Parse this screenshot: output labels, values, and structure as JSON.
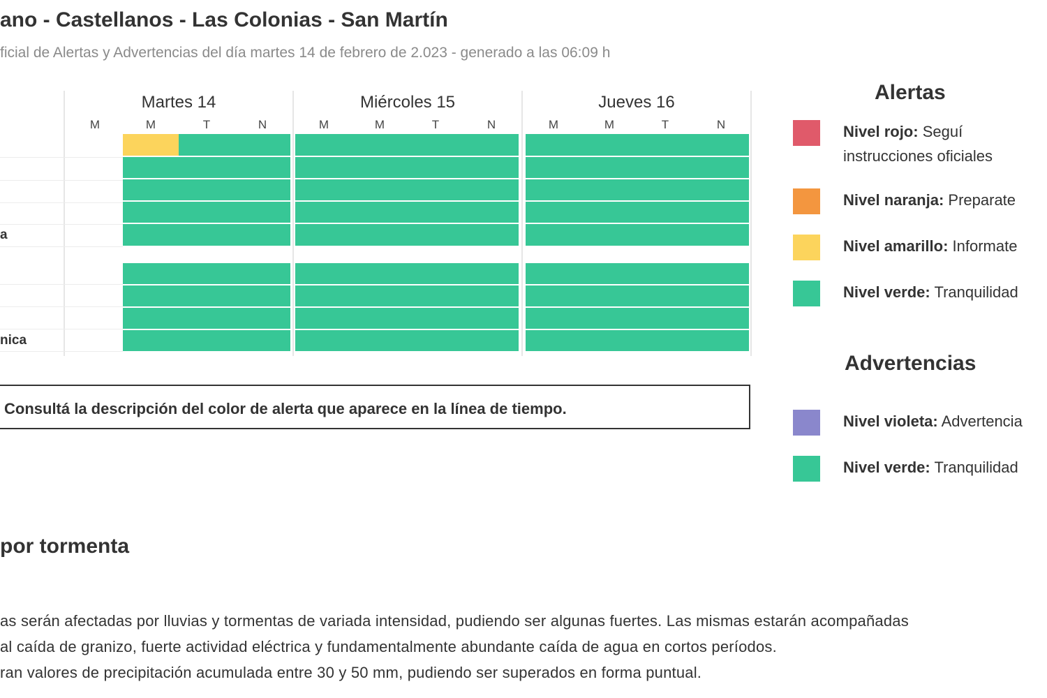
{
  "header": {
    "title": "ano - Castellanos - Las Colonias - San Martín",
    "subtitle": "ficial de Alertas y Advertencias del día martes 14 de febrero de 2.023 - generado a las 06:09 h"
  },
  "timeline": {
    "days": [
      {
        "label": "Martes 14",
        "periods": [
          "M",
          "M",
          "T",
          "N"
        ]
      },
      {
        "label": "Miércoles 15",
        "periods": [
          "M",
          "M",
          "T",
          "N"
        ]
      },
      {
        "label": "Jueves 16",
        "periods": [
          "M",
          "M",
          "T",
          "N"
        ]
      }
    ],
    "row_labels": [
      "a",
      "nica"
    ],
    "cell_colors": {
      "green": "#37c796",
      "yellow": "#fcd45c"
    }
  },
  "notice": {
    "text": "Consultá la descripción del color de alerta que aparece en la línea de tiempo."
  },
  "legend": {
    "alertas_title": "Alertas",
    "alertas": [
      {
        "name": "Nivel rojo:",
        "desc": "Seguí",
        "desc2": "instrucciones oficiales",
        "color": "#e05a6a"
      },
      {
        "name": "Nivel naranja:",
        "desc": "Preparate",
        "color": "#f3963f"
      },
      {
        "name": "Nivel amarillo:",
        "desc": "Informate",
        "color": "#fcd45c"
      },
      {
        "name": "Nivel verde:",
        "desc": "Tranquilidad",
        "color": "#37c796"
      }
    ],
    "advertencias_title": "Advertencias",
    "advertencias": [
      {
        "name": "Nivel violeta:",
        "desc": "Advertencia",
        "color": "#8a87cc"
      },
      {
        "name": "Nivel verde:",
        "desc": "Tranquilidad",
        "color": "#37c796"
      }
    ]
  },
  "storm": {
    "heading": "por tormenta",
    "lines": [
      "as serán afectadas por lluvias y tormentas de variada intensidad, pudiendo ser algunas fuertes. Las mismas estarán acompañadas",
      "al caída de granizo, fuerte actividad eléctrica y fundamentalmente abundante caída de agua en cortos períodos.",
      "ran valores de precipitación acumulada entre 30 y 50 mm, pudiendo ser superados en forma puntual."
    ]
  }
}
